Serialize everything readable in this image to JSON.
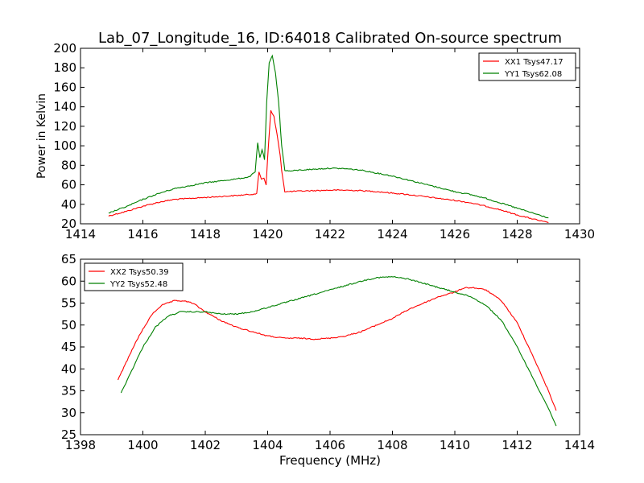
{
  "title": "Lab_07_Longitude_16, ID:64018 Calibrated On-source spectrum",
  "xlabel": "Frequency (MHz)",
  "ylabel": "Power in Kelvin",
  "colors": {
    "xx": "#ff0000",
    "yy": "#008000"
  },
  "chart_data": [
    {
      "type": "line",
      "ylabel": "Power in Kelvin",
      "xlabel": "",
      "xlim": [
        1414,
        1430
      ],
      "ylim": [
        20,
        200
      ],
      "xticks": [
        1414,
        1416,
        1418,
        1420,
        1422,
        1424,
        1426,
        1428,
        1430
      ],
      "yticks": [
        20,
        40,
        60,
        80,
        100,
        120,
        140,
        160,
        180,
        200
      ],
      "legend": "top-right",
      "series": [
        {
          "name": "XX1 Tsys47.17",
          "color": "#ff0000",
          "x": [
            1414.9,
            1415.5,
            1416,
            1416.5,
            1417,
            1417.5,
            1418,
            1418.5,
            1419,
            1419.4,
            1419.65,
            1419.72,
            1419.8,
            1419.88,
            1419.95,
            1420.0,
            1420.1,
            1420.2,
            1420.3,
            1420.4,
            1420.45,
            1420.55,
            1420.7,
            1421,
            1421.5,
            1422,
            1422.5,
            1423,
            1423.5,
            1424,
            1424.5,
            1425,
            1425.5,
            1426,
            1426.5,
            1427,
            1427.5,
            1428,
            1428.5,
            1429.0
          ],
          "values": [
            28,
            33,
            38,
            42,
            45,
            46,
            47,
            48,
            49,
            50,
            51,
            73,
            66,
            67,
            60,
            88,
            136,
            130,
            112,
            90,
            75,
            53,
            53,
            53.5,
            54,
            54.5,
            54.5,
            54,
            53,
            51.5,
            50,
            48,
            46,
            44,
            41.5,
            38,
            34,
            29,
            25,
            21
          ]
        },
        {
          "name": "YY1 Tsys62.08",
          "color": "#008000",
          "x": [
            1414.9,
            1415.5,
            1416,
            1416.5,
            1417,
            1417.5,
            1418,
            1418.5,
            1419,
            1419.4,
            1419.6,
            1419.68,
            1419.75,
            1419.82,
            1419.9,
            1419.97,
            1420.05,
            1420.15,
            1420.25,
            1420.35,
            1420.45,
            1420.55,
            1420.7,
            1421,
            1421.5,
            1422,
            1422.5,
            1423,
            1423.5,
            1424,
            1424.5,
            1425,
            1425.5,
            1426,
            1426.5,
            1427,
            1427.5,
            1428,
            1428.5,
            1429.0
          ],
          "values": [
            31,
            38,
            45,
            51,
            56,
            59,
            62,
            64,
            66,
            68,
            73,
            103,
            88,
            96,
            86,
            145,
            185,
            192,
            175,
            145,
            100,
            75,
            74,
            75,
            76,
            77,
            76.5,
            75,
            72,
            69,
            65,
            61,
            57,
            53,
            50,
            46,
            41,
            36,
            31,
            26
          ]
        }
      ]
    },
    {
      "type": "line",
      "xlabel": "Frequency (MHz)",
      "ylabel": "",
      "xlim": [
        1398,
        1414
      ],
      "ylim": [
        25,
        65
      ],
      "xticks": [
        1398,
        1400,
        1402,
        1404,
        1406,
        1408,
        1410,
        1412,
        1414
      ],
      "yticks": [
        25,
        30,
        35,
        40,
        45,
        50,
        55,
        60,
        65
      ],
      "legend": "top-left",
      "series": [
        {
          "name": "XX2 Tsys50.39",
          "color": "#ff0000",
          "x": [
            1399.2,
            1399.5,
            1399.8,
            1400.0,
            1400.3,
            1400.6,
            1401.0,
            1401.3,
            1401.6,
            1402.0,
            1402.5,
            1403.0,
            1403.5,
            1404.0,
            1404.5,
            1405.0,
            1405.5,
            1406.0,
            1406.5,
            1407.0,
            1407.5,
            1408.0,
            1408.5,
            1409.0,
            1409.5,
            1410.0,
            1410.3,
            1410.6,
            1411.0,
            1411.5,
            1412.0,
            1412.5,
            1413.0,
            1413.25
          ],
          "values": [
            37.5,
            42,
            46.5,
            49,
            52.5,
            54.5,
            55.5,
            55.5,
            55,
            53,
            51,
            49.5,
            48.5,
            47.5,
            47,
            47,
            46.8,
            47,
            47.5,
            48.5,
            50,
            51.5,
            53.5,
            55,
            56.5,
            57.5,
            58.5,
            58.5,
            58,
            55.5,
            50.5,
            43,
            35,
            30.5
          ]
        },
        {
          "name": "YY2 Tsys52.48",
          "color": "#008000",
          "x": [
            1399.3,
            1399.6,
            1400.0,
            1400.4,
            1400.8,
            1401.2,
            1401.6,
            1402.0,
            1402.5,
            1403.0,
            1403.5,
            1404.0,
            1404.5,
            1405.0,
            1405.5,
            1406.0,
            1406.5,
            1407.0,
            1407.5,
            1408.0,
            1408.5,
            1409.0,
            1409.5,
            1410.0,
            1410.5,
            1411.0,
            1411.5,
            1412.0,
            1412.5,
            1413.0,
            1413.25
          ],
          "values": [
            34.5,
            39,
            45,
            49.5,
            52,
            53,
            53,
            53,
            52.5,
            52.5,
            53,
            54,
            55,
            56,
            57,
            58,
            59,
            60,
            60.8,
            61,
            60.5,
            59.5,
            58.5,
            57.5,
            56.5,
            54.5,
            51,
            45,
            38,
            31,
            27
          ]
        }
      ]
    }
  ]
}
